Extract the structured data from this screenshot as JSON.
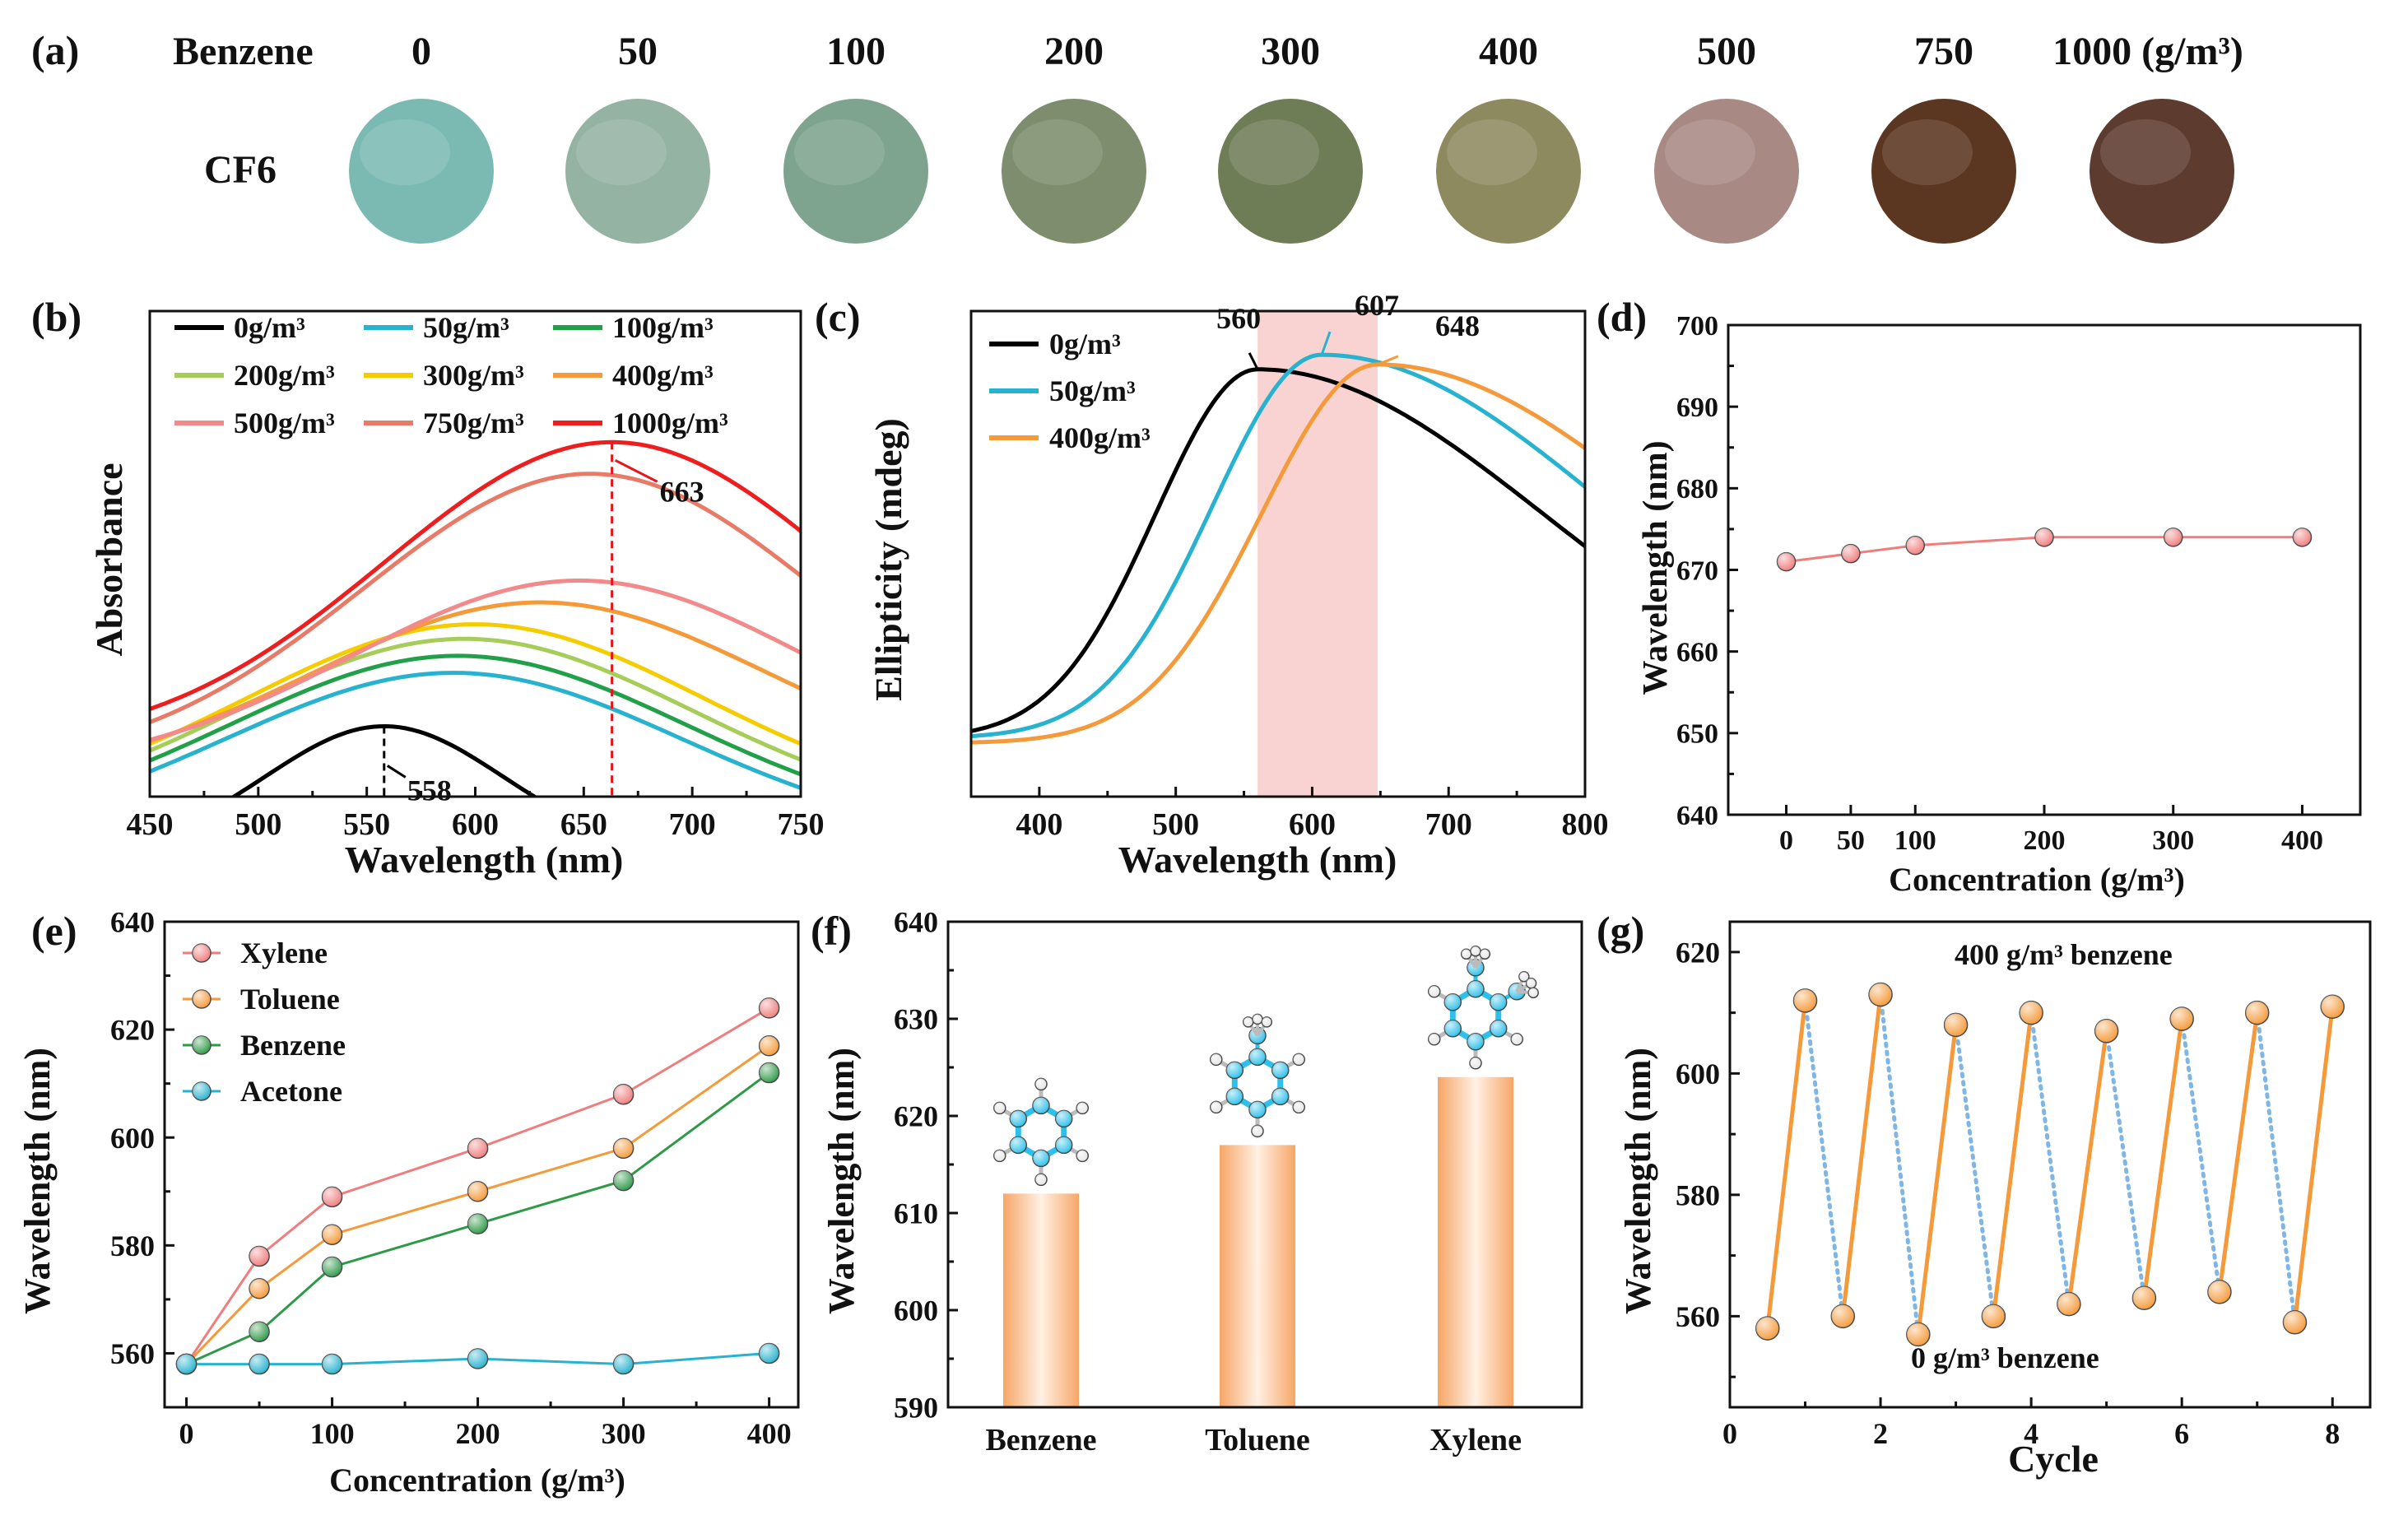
{
  "panel_a": {
    "label": "(a)",
    "row_label": "Benzene",
    "sample_label": "CF6",
    "concentrations": [
      "0",
      "50",
      "100",
      "200",
      "300",
      "400",
      "500",
      "750",
      "1000 (g/m³)"
    ],
    "sample_colors": [
      "#7bbab2",
      "#94b3a3",
      "#7ea38e",
      "#7d8d6d",
      "#6f7d57",
      "#8e8a60",
      "#a88984",
      "#5b3620",
      "#5e3b2f"
    ]
  },
  "chart_data": [
    {
      "panel": "(b)",
      "type": "line",
      "title": "",
      "xlabel": "Wavelength (nm)",
      "ylabel": "Absorbance",
      "xlim": [
        450,
        750
      ],
      "ylim": [
        0,
        1
      ],
      "xticks": [
        450,
        500,
        550,
        600,
        650,
        700,
        750
      ],
      "grid": false,
      "legend_position": "top",
      "series": [
        {
          "name": "0g/m³",
          "color": "#000000",
          "peak_x": 558,
          "peak_y": 0.145,
          "base_y": 0,
          "width": 55
        },
        {
          "name": "50g/m³",
          "color": "#27b2cf",
          "peak_x": 590,
          "peak_y": 0.255,
          "base_y": 0.03,
          "width": 105
        },
        {
          "name": "100g/m³",
          "color": "#22a049",
          "peak_x": 592,
          "peak_y": 0.29,
          "base_y": 0.05,
          "width": 105
        },
        {
          "name": "200g/m³",
          "color": "#a6cd5a",
          "peak_x": 595,
          "peak_y": 0.325,
          "base_y": 0.07,
          "width": 105
        },
        {
          "name": "300g/m³",
          "color": "#f4cc00",
          "peak_x": 600,
          "peak_y": 0.355,
          "base_y": 0.09,
          "width": 105
        },
        {
          "name": "400g/m³",
          "color": "#f59a3a",
          "peak_x": 630,
          "peak_y": 0.4,
          "base_y": 0.15,
          "width": 105
        },
        {
          "name": "500g/m³",
          "color": "#f2898a",
          "peak_x": 648,
          "peak_y": 0.445,
          "base_y": 0.17,
          "width": 105
        },
        {
          "name": "750g/m³",
          "color": "#e77b68",
          "peak_x": 653,
          "peak_y": 0.665,
          "base_y": 0.18,
          "width": 105
        },
        {
          "name": "1000g/m³",
          "color": "#ee1e1e",
          "peak_x": 663,
          "peak_y": 0.73,
          "base_y": 0.22,
          "width": 105
        }
      ],
      "annotations": [
        {
          "text": "558",
          "x": 558,
          "color": "#000000"
        },
        {
          "text": "663",
          "x": 663,
          "color": "#e8141b"
        }
      ]
    },
    {
      "panel": "(c)",
      "type": "line",
      "title": "",
      "xlabel": "Wavelength (nm)",
      "ylabel": "Ellipticity (mdeg)",
      "xlim": [
        350,
        800
      ],
      "ylim": [
        0,
        1
      ],
      "xticks": [
        400,
        500,
        600,
        700,
        800
      ],
      "grid": false,
      "legend_position": "top-left",
      "shaded_region": [
        560,
        648
      ],
      "series": [
        {
          "name": "0g/m³",
          "color": "#000000",
          "peak_x": 560,
          "peak_y": 0.88,
          "base_y": 0.12,
          "w_left": 75,
          "w_right": 210
        },
        {
          "name": "50g/m³",
          "color": "#27b2cf",
          "peak_x": 607,
          "peak_y": 0.91,
          "base_y": 0.12,
          "w_left": 80,
          "w_right": 210
        },
        {
          "name": "400g/m³",
          "color": "#f59a3a",
          "peak_x": 648,
          "peak_y": 0.89,
          "base_y": 0.11,
          "w_left": 85,
          "w_right": 215
        }
      ],
      "annotations": [
        {
          "text": "560",
          "x": 560,
          "color": "#000000"
        },
        {
          "text": "607",
          "x": 607,
          "color": "#27b2cf"
        },
        {
          "text": "648",
          "x": 648,
          "color": "#f59a3a"
        }
      ]
    },
    {
      "panel": "(d)",
      "type": "line",
      "title": "",
      "xlabel": "Concentration (g/m³)",
      "ylabel": "Wavelength (nm)",
      "xlim": [
        -45,
        445
      ],
      "ylim": [
        640,
        700
      ],
      "xticks": [
        0,
        50,
        100,
        200,
        300,
        400
      ],
      "yticks": [
        640,
        650,
        660,
        670,
        680,
        690,
        700
      ],
      "grid": false,
      "x": [
        0,
        50,
        100,
        200,
        300,
        400
      ],
      "series": [
        {
          "name": "Benzene",
          "color": "#f07d7d",
          "values": [
            671,
            672,
            673,
            674,
            674,
            674
          ]
        }
      ]
    },
    {
      "panel": "(e)",
      "type": "line",
      "title": "",
      "xlabel": "Concentration (g/m³)",
      "ylabel": "Wavelength (nm)",
      "xlim": [
        -15,
        420
      ],
      "ylim": [
        550,
        640
      ],
      "xticks": [
        0,
        100,
        200,
        300,
        400
      ],
      "yticks": [
        560,
        580,
        600,
        620,
        640
      ],
      "grid": false,
      "legend_position": "top-left",
      "x": [
        0,
        50,
        100,
        200,
        300,
        400
      ],
      "series": [
        {
          "name": "Xylene",
          "color": "#f07d7d",
          "values": [
            558,
            578,
            589,
            598,
            608,
            624
          ]
        },
        {
          "name": "Toluene",
          "color": "#f59a3a",
          "values": [
            558,
            572,
            582,
            590,
            598,
            617
          ]
        },
        {
          "name": "Benzene",
          "color": "#2e9a47",
          "values": [
            558,
            564,
            576,
            584,
            592,
            612
          ]
        },
        {
          "name": "Acetone",
          "color": "#27b2cf",
          "values": [
            558,
            558,
            558,
            559,
            558,
            560
          ]
        }
      ]
    },
    {
      "panel": "(f)",
      "type": "bar",
      "title": "",
      "xlabel": "",
      "ylabel": "Wavelength (nm)",
      "ylim": [
        590,
        640
      ],
      "yticks": [
        590,
        600,
        610,
        620,
        630,
        640
      ],
      "grid": false,
      "categories": [
        "Benzene",
        "Toluene",
        "Xylene"
      ],
      "values": [
        612,
        617,
        624
      ],
      "methyl_groups": [
        0,
        1,
        2
      ]
    },
    {
      "panel": "(g)",
      "type": "line",
      "title": "",
      "xlabel": "Cycle",
      "ylabel": "Wavelength (nm)",
      "xlim": [
        0,
        8.5
      ],
      "ylim": [
        545,
        625
      ],
      "xticks": [
        0,
        2,
        4,
        6,
        8
      ],
      "yticks": [
        560,
        580,
        600,
        620
      ],
      "grid": false,
      "x": [
        0.5,
        1,
        1.5,
        2,
        2.5,
        3,
        3.5,
        4,
        4.5,
        5,
        5.5,
        6,
        6.5,
        7,
        7.5,
        8
      ],
      "values": [
        558,
        612,
        560,
        613,
        557,
        608,
        560,
        610,
        562,
        607,
        563,
        609,
        564,
        610,
        559,
        611
      ],
      "series": [
        {
          "name": "400 g/m³ benzene",
          "color": "#f59a3a",
          "style": "solid"
        },
        {
          "name": "0 g/m³ benzene",
          "color": "#7fb6e6",
          "style": "dotted"
        }
      ]
    }
  ]
}
